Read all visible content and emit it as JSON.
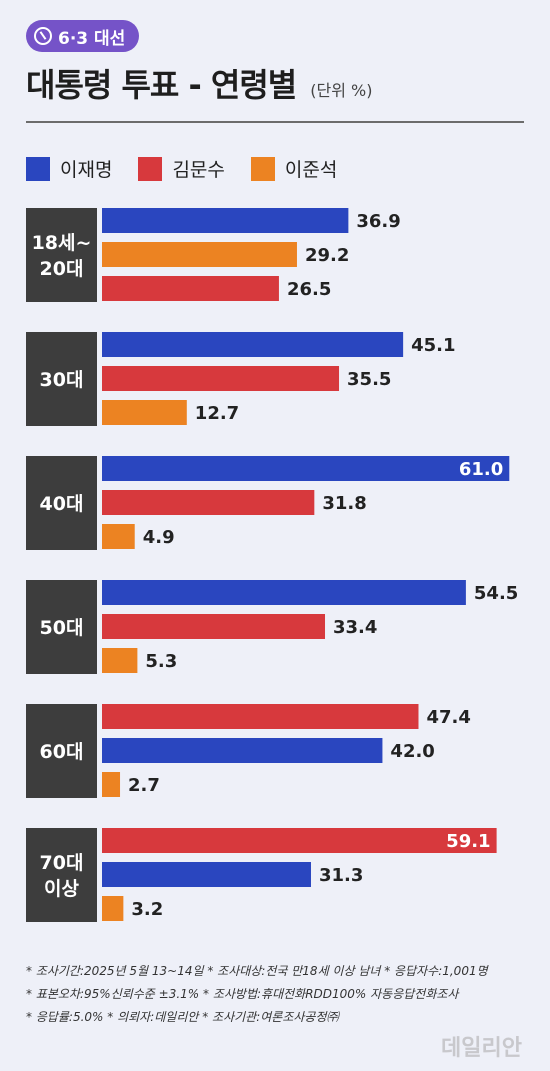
{
  "badge": {
    "label": "6·3 대선"
  },
  "header": {
    "title": "대통령 투표 - 연령별",
    "unit": "(단위 %)"
  },
  "colors": {
    "이재명": "#2a46bf",
    "김문수": "#d7393d",
    "이준석": "#ec8322",
    "group_label_bg": "#3d3d3d"
  },
  "legend": [
    {
      "name": "이재명",
      "color": "#2a46bf"
    },
    {
      "name": "김문수",
      "color": "#d7393d"
    },
    {
      "name": "이준석",
      "color": "#ec8322"
    }
  ],
  "chart_data": {
    "type": "bar",
    "orientation": "horizontal",
    "xlim": [
      0,
      65
    ],
    "groups": [
      {
        "label": [
          "18세~",
          "20대"
        ],
        "bars": [
          {
            "series": "이재명",
            "value": 36.9,
            "label": "36.9"
          },
          {
            "series": "이준석",
            "value": 29.2,
            "label": "29.2"
          },
          {
            "series": "김문수",
            "value": 26.5,
            "label": "26.5"
          }
        ]
      },
      {
        "label": [
          "30대"
        ],
        "bars": [
          {
            "series": "이재명",
            "value": 45.1,
            "label": "45.1"
          },
          {
            "series": "김문수",
            "value": 35.5,
            "label": "35.5"
          },
          {
            "series": "이준석",
            "value": 12.7,
            "label": "12.7"
          }
        ]
      },
      {
        "label": [
          "40대"
        ],
        "bars": [
          {
            "series": "이재명",
            "value": 61.0,
            "label": "61.0"
          },
          {
            "series": "김문수",
            "value": 31.8,
            "label": "31.8"
          },
          {
            "series": "이준석",
            "value": 4.9,
            "label": "4.9"
          }
        ]
      },
      {
        "label": [
          "50대"
        ],
        "bars": [
          {
            "series": "이재명",
            "value": 54.5,
            "label": "54.5"
          },
          {
            "series": "김문수",
            "value": 33.4,
            "label": "33.4"
          },
          {
            "series": "이준석",
            "value": 5.3,
            "label": "5.3"
          }
        ]
      },
      {
        "label": [
          "60대"
        ],
        "bars": [
          {
            "series": "김문수",
            "value": 47.4,
            "label": "47.4"
          },
          {
            "series": "이재명",
            "value": 42.0,
            "label": "42.0"
          },
          {
            "series": "이준석",
            "value": 2.7,
            "label": "2.7"
          }
        ]
      },
      {
        "label": [
          "70대",
          "이상"
        ],
        "bars": [
          {
            "series": "김문수",
            "value": 59.1,
            "label": "59.1"
          },
          {
            "series": "이재명",
            "value": 31.3,
            "label": "31.3"
          },
          {
            "series": "이준석",
            "value": 3.2,
            "label": "3.2"
          }
        ]
      }
    ]
  },
  "footnotes": [
    "* 조사기간:2025년 5월 13~14일  * 조사대상:전국 만18세 이상 남녀  * 응답자수:1,001명",
    "* 표본오차:95%신뢰수준 ±3.1%  * 조사방법:휴대전화RDD100% 자동응답전화조사",
    "* 응답률:5.0%  * 의뢰자:데일리안  * 조사기관:여론조사공정㈜"
  ],
  "watermark": "데일리안"
}
